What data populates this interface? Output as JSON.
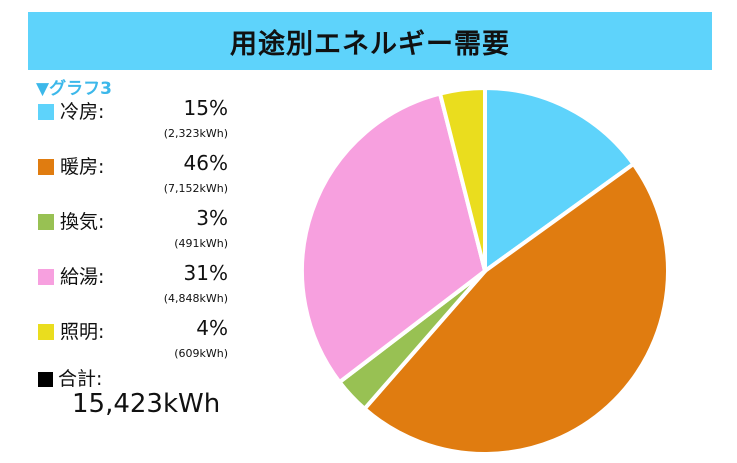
{
  "title": "用途別エネルギー需要",
  "graph_label": "▼グラフ3",
  "chart_data": {
    "type": "pie",
    "title": "用途別エネルギー需要",
    "slices": [
      {
        "label": "冷房",
        "percent": 15,
        "percent_text": "15%",
        "kwh": 2323,
        "kwh_text": "(2,323kWh)",
        "color": "#5ed3fb"
      },
      {
        "label": "暖房",
        "percent": 46,
        "percent_text": "46%",
        "kwh": 7152,
        "kwh_text": "(7,152kWh)",
        "color": "#e07c10"
      },
      {
        "label": "換気",
        "percent": 3,
        "percent_text": "3%",
        "kwh": 491,
        "kwh_text": "(491kWh)",
        "color": "#98c153"
      },
      {
        "label": "給湯",
        "percent": 31,
        "percent_text": "31%",
        "kwh": 4848,
        "kwh_text": "(4,848kWh)",
        "color": "#f7a0df"
      },
      {
        "label": "照明",
        "percent": 4,
        "percent_text": "4%",
        "kwh": 609,
        "kwh_text": "(609kWh)",
        "color": "#eadd1e"
      }
    ],
    "total_label": "合計",
    "total_value": "15,423kWh",
    "legend_position": "left"
  }
}
